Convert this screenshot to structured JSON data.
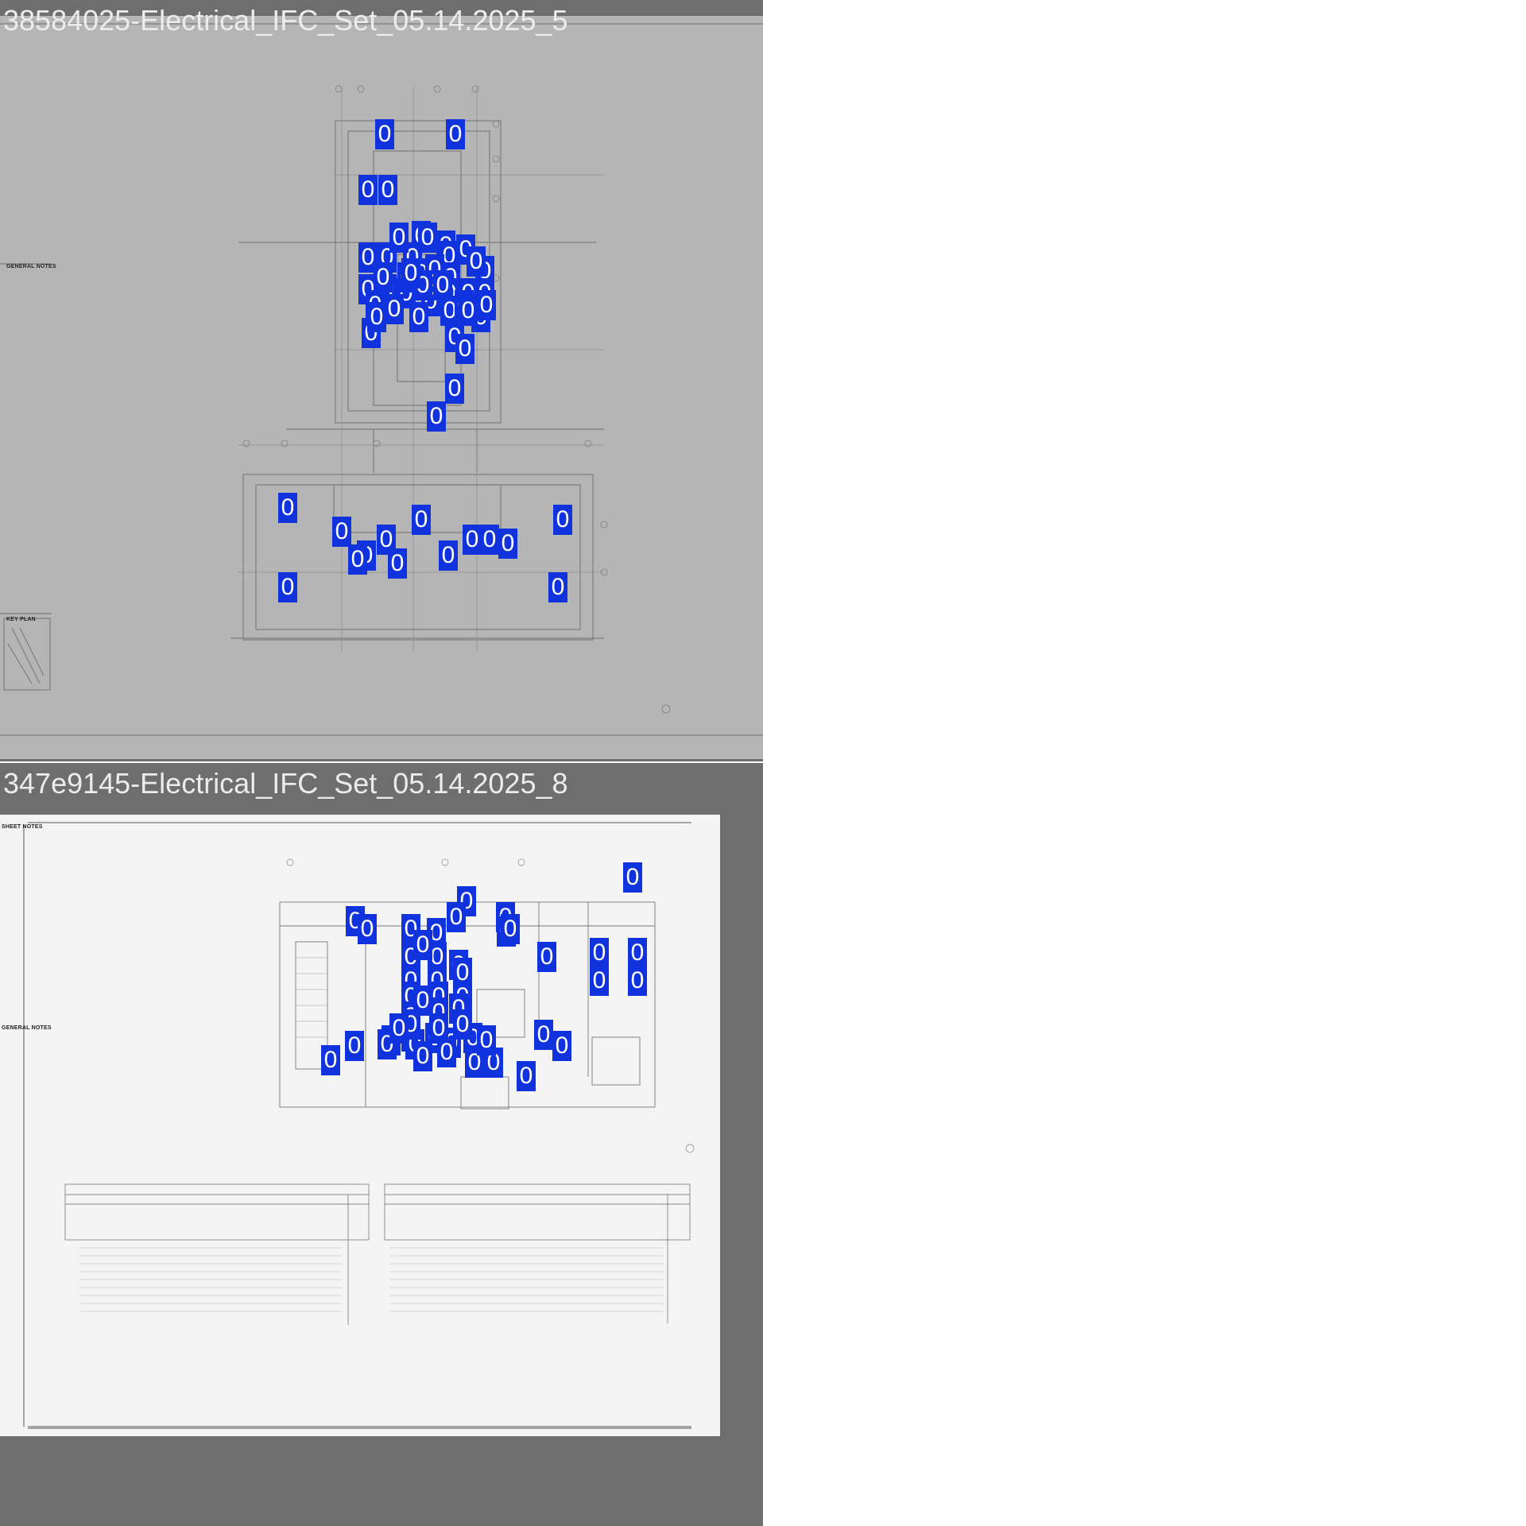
{
  "panels": [
    {
      "title": "38584025-Electrical_IFC_Set_05.14.2025_5",
      "notes_labels": [
        "GENERAL NOTES",
        "KEY PLAN"
      ],
      "detection_label": "0",
      "detection_count": 58,
      "background_color": "#b5b5b5"
    },
    {
      "title": "347e9145-Electrical_IFC_Set_05.14.2025_8",
      "notes_labels": [
        "SHEET NOTES",
        "GENERAL NOTES"
      ],
      "detection_label": "0",
      "detection_count": 50,
      "background_color": "#f4f4f4"
    }
  ],
  "detection_box_color": "#1133dd",
  "viewer_background_color": "#6e6e6e"
}
